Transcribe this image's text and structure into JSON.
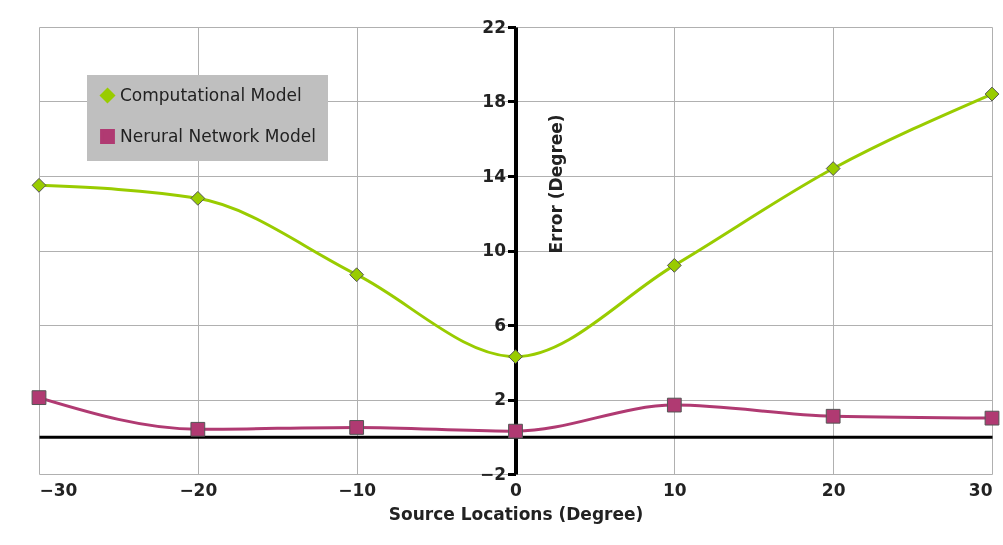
{
  "chart_data": {
    "type": "line",
    "xlabel": "Source Locations (Degree)",
    "ylabel": "Error (Degree)",
    "x": [
      -30,
      -20,
      -10,
      0,
      10,
      20,
      30
    ],
    "series": [
      {
        "name": "Computational Model",
        "color": "#99cc00",
        "marker": "diamond",
        "values": [
          13.5,
          12.8,
          8.7,
          4.3,
          9.2,
          14.4,
          18.4
        ]
      },
      {
        "name": "Nerural Network Model",
        "color": "#b03a72",
        "marker": "square",
        "values": [
          2.1,
          0.4,
          0.5,
          0.3,
          1.7,
          1.1,
          1.0
        ]
      }
    ],
    "xlim": [
      -30,
      30
    ],
    "xticks": [
      -30,
      -20,
      -10,
      0,
      10,
      20,
      30
    ],
    "ylim": [
      -2,
      22
    ],
    "yticks": [
      -2,
      2,
      6,
      10,
      14,
      18,
      22
    ],
    "grid": true,
    "legend": "top left"
  }
}
